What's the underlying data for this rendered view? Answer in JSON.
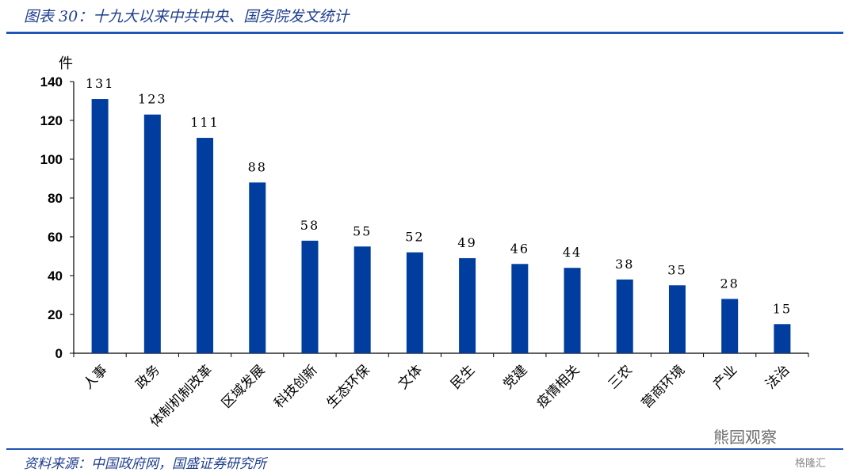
{
  "header": {
    "title": "图表 30：十九大以来中共中央、国务院发文统计"
  },
  "footer": {
    "source": "资料来源：中国政府网，国盛证券研究所"
  },
  "watermark": {
    "main": "熊园观察",
    "corner": "格隆汇"
  },
  "colors": {
    "bar": "#003d9e",
    "accent": "#1f55b4",
    "title": "#1f3f8f"
  },
  "chart_data": {
    "type": "bar",
    "title": "",
    "ylabel": "件",
    "xlabel": "",
    "ylim": [
      0,
      140
    ],
    "yticks": [
      0,
      20,
      40,
      60,
      80,
      100,
      120,
      140
    ],
    "categories": [
      "人事",
      "政务",
      "体制机制改革",
      "区域发展",
      "科技创新",
      "生态环保",
      "文体",
      "民生",
      "党建",
      "疫情相关",
      "三农",
      "营商环境",
      "产业",
      "法治"
    ],
    "values": [
      131,
      123,
      111,
      88,
      58,
      55,
      52,
      49,
      46,
      44,
      38,
      35,
      28,
      15
    ],
    "grid": false,
    "legend": "none"
  }
}
